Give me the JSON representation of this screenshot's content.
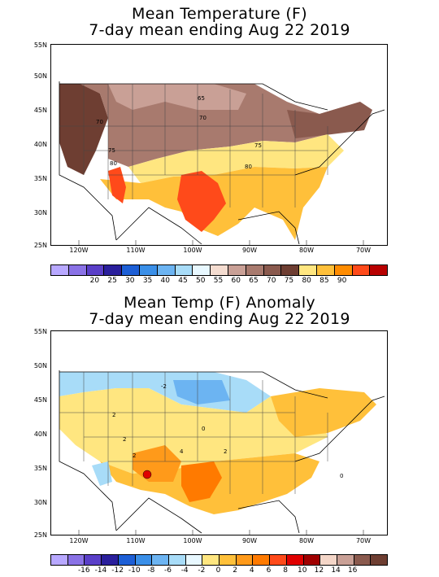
{
  "maps": [
    {
      "title_line1": "Mean Temperature (F)",
      "title_line2": "7-day mean ending Aug 22 2019",
      "lat_labels": [
        "55N",
        "50N",
        "45N",
        "40N",
        "35N",
        "30N",
        "25N"
      ],
      "lon_labels": [
        "120W",
        "110W",
        "100W",
        "90W",
        "80W",
        "70W"
      ],
      "contour_labels": [
        "65",
        "70",
        "70",
        "75",
        "75",
        "80",
        "80"
      ],
      "legend_colors": [
        "#b8a8ff",
        "#8a72e6",
        "#5a3fc8",
        "#2a1f9c",
        "#1d5fd6",
        "#3a8fe8",
        "#6cb4f2",
        "#a8dcf8",
        "#e8f8ff",
        "#f4dcd0",
        "#c9a096",
        "#a87a6e",
        "#8a5a4e",
        "#6e3e32",
        "#ffe680",
        "#ffc03a",
        "#ff8c00",
        "#ff4a1a",
        "#b80000"
      ],
      "legend_labels": [
        "20",
        "25",
        "30",
        "35",
        "40",
        "45",
        "50",
        "55",
        "60",
        "65",
        "70",
        "75",
        "80",
        "85",
        "90"
      ]
    },
    {
      "title_line1": "Mean Temp (F) Anomaly",
      "title_line2": "7-day mean ending Aug 22 2019",
      "lat_labels": [
        "55N",
        "50N",
        "45N",
        "40N",
        "35N",
        "30N",
        "25N"
      ],
      "lon_labels": [
        "120W",
        "110W",
        "100W",
        "90W",
        "80W",
        "70W"
      ],
      "contour_labels": [
        "-2",
        "0",
        "2",
        "2",
        "2",
        "4",
        "2",
        "0"
      ],
      "legend_colors": [
        "#b8a8ff",
        "#8a72e6",
        "#5a3fc8",
        "#2a1f9c",
        "#1d5fd6",
        "#3a8fe8",
        "#6cb4f2",
        "#a8dcf8",
        "#e8f8ff",
        "#ffe680",
        "#ffc03a",
        "#ff9a1a",
        "#ff7a00",
        "#ff4a1a",
        "#e00000",
        "#a00000",
        "#f4d6c8",
        "#c9a096",
        "#8a5a4e",
        "#6e3e32"
      ],
      "legend_labels": [
        "-16",
        "-14",
        "-12",
        "-10",
        "-8",
        "-6",
        "-4",
        "-2",
        "0",
        "2",
        "4",
        "6",
        "8",
        "10",
        "12",
        "14",
        "16"
      ]
    }
  ]
}
